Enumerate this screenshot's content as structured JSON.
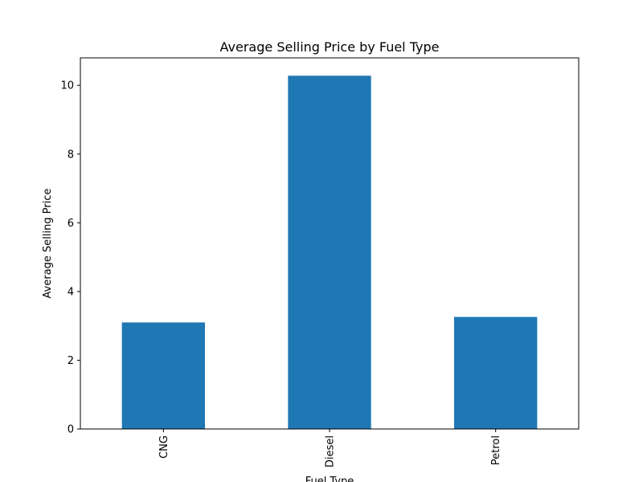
{
  "chart_data": {
    "type": "bar",
    "title": "Average Selling Price by Fuel Type",
    "xlabel": "Fuel Type",
    "ylabel": "Average Selling Price",
    "categories": [
      "CNG",
      "Diesel",
      "Petrol"
    ],
    "values": [
      3.1,
      10.28,
      3.26
    ],
    "ylim": [
      0,
      10.8
    ],
    "yticks": [
      0,
      2,
      4,
      6,
      8,
      10
    ],
    "ytick_labels": [
      "0",
      "2",
      "4",
      "6",
      "8",
      "10"
    ],
    "grid": false,
    "bar_color": "#1f77b4",
    "xtick_rotation": "vertical"
  }
}
